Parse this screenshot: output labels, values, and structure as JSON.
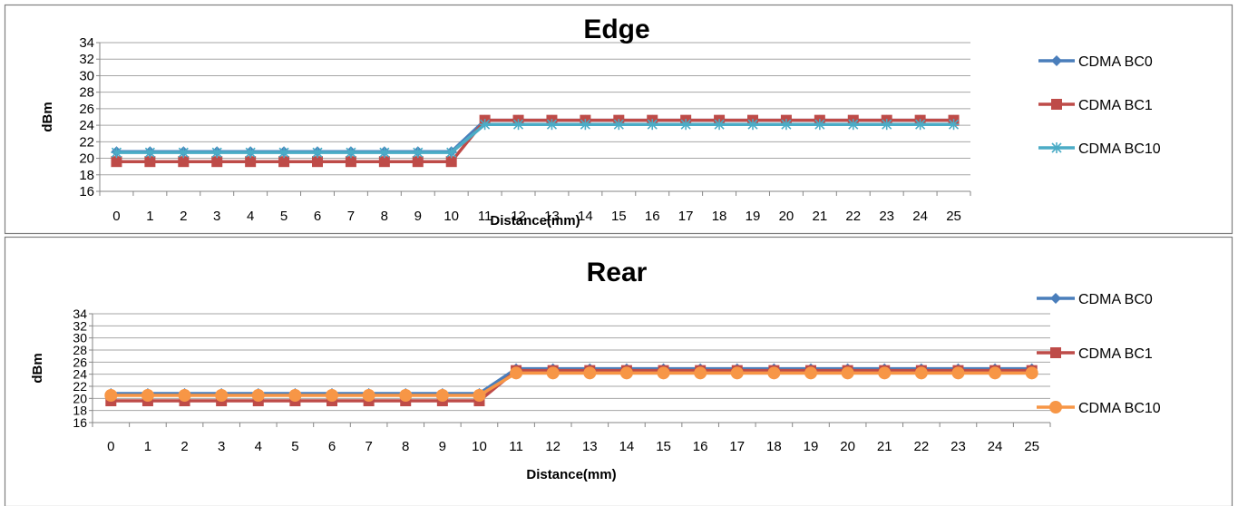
{
  "colors": {
    "border": "#7f7f7f",
    "grid": "#a6a6a6",
    "axis": "#868686",
    "text": "#000000"
  },
  "chart_data": [
    {
      "type": "line",
      "title": "Edge",
      "xlabel": "Distance(mm)",
      "ylabel": "dBm",
      "ylim": [
        16,
        34
      ],
      "ytick_step": 2,
      "grid": true,
      "legend_position": "right",
      "categories": [
        "0",
        "1",
        "2",
        "3",
        "4",
        "5",
        "6",
        "7",
        "8",
        "9",
        "10",
        "11",
        "12",
        "13",
        "14",
        "15",
        "16",
        "17",
        "18",
        "19",
        "20",
        "21",
        "22",
        "23",
        "24",
        "25"
      ],
      "series": [
        {
          "name": "CDMA BC0",
          "color": "#4a7ebb",
          "marker": "diamond",
          "values": [
            20.8,
            20.8,
            20.8,
            20.8,
            20.8,
            20.8,
            20.8,
            20.8,
            20.8,
            20.8,
            20.8,
            24.6,
            24.6,
            24.6,
            24.6,
            24.6,
            24.6,
            24.6,
            24.6,
            24.6,
            24.6,
            24.6,
            24.6,
            24.6,
            24.6,
            24.6
          ]
        },
        {
          "name": "CDMA BC1",
          "color": "#be4b48",
          "marker": "square",
          "values": [
            19.6,
            19.6,
            19.6,
            19.6,
            19.6,
            19.6,
            19.6,
            19.6,
            19.6,
            19.6,
            19.6,
            24.6,
            24.6,
            24.6,
            24.6,
            24.6,
            24.6,
            24.6,
            24.6,
            24.6,
            24.6,
            24.6,
            24.6,
            24.6,
            24.6,
            24.6
          ]
        },
        {
          "name": "CDMA BC10",
          "color": "#4bacc6",
          "marker": "star",
          "values": [
            20.7,
            20.7,
            20.7,
            20.7,
            20.7,
            20.7,
            20.7,
            20.7,
            20.7,
            20.7,
            20.7,
            24.1,
            24.1,
            24.1,
            24.1,
            24.1,
            24.1,
            24.1,
            24.1,
            24.1,
            24.1,
            24.1,
            24.1,
            24.1,
            24.1,
            24.1
          ]
        }
      ]
    },
    {
      "type": "line",
      "title": "Rear",
      "xlabel": "Distance(mm)",
      "ylabel": "dBm",
      "ylim": [
        16,
        34
      ],
      "ytick_step": 2,
      "grid": true,
      "legend_position": "right",
      "categories": [
        "0",
        "1",
        "2",
        "3",
        "4",
        "5",
        "6",
        "7",
        "8",
        "9",
        "10",
        "11",
        "12",
        "13",
        "14",
        "15",
        "16",
        "17",
        "18",
        "19",
        "20",
        "21",
        "22",
        "23",
        "24",
        "25"
      ],
      "series": [
        {
          "name": "CDMA BC0",
          "color": "#4a7ebb",
          "marker": "diamond",
          "values": [
            20.8,
            20.8,
            20.8,
            20.8,
            20.8,
            20.8,
            20.8,
            20.8,
            20.8,
            20.8,
            20.8,
            24.9,
            24.9,
            24.9,
            24.9,
            24.9,
            24.9,
            24.9,
            24.9,
            24.9,
            24.9,
            24.9,
            24.9,
            24.9,
            24.9,
            24.9
          ]
        },
        {
          "name": "CDMA BC1",
          "color": "#be4b48",
          "marker": "square",
          "values": [
            19.6,
            19.6,
            19.6,
            19.6,
            19.6,
            19.6,
            19.6,
            19.6,
            19.6,
            19.6,
            19.6,
            24.6,
            24.6,
            24.6,
            24.6,
            24.6,
            24.6,
            24.6,
            24.6,
            24.6,
            24.6,
            24.6,
            24.6,
            24.6,
            24.6,
            24.6
          ]
        },
        {
          "name": "CDMA BC10",
          "color": "#f79646",
          "marker": "circle",
          "values": [
            20.5,
            20.5,
            20.5,
            20.5,
            20.5,
            20.5,
            20.5,
            20.5,
            20.5,
            20.5,
            20.5,
            24.2,
            24.2,
            24.2,
            24.2,
            24.2,
            24.2,
            24.2,
            24.2,
            24.2,
            24.2,
            24.2,
            24.2,
            24.2,
            24.2,
            24.2
          ]
        }
      ]
    }
  ]
}
